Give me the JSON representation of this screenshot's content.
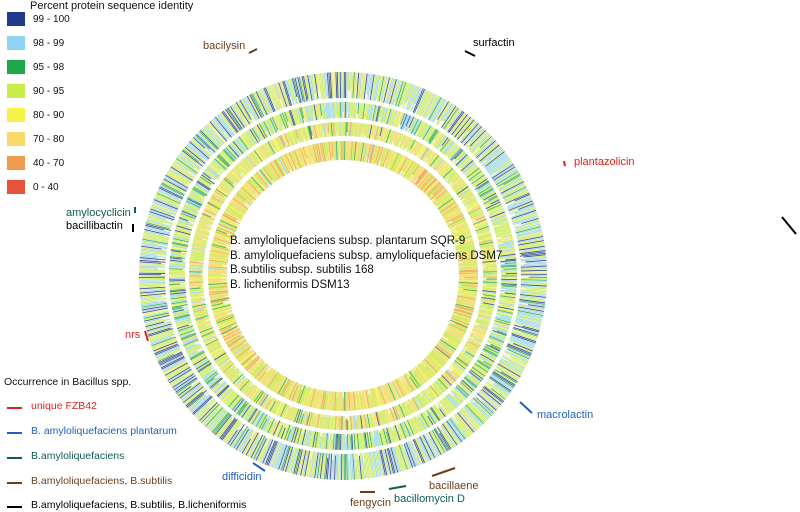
{
  "identity_legend": {
    "title": "Percent protein sequence identity",
    "items": [
      {
        "range": "99 - 100",
        "color": "#233a8c"
      },
      {
        "range": "98 - 99",
        "color": "#8ed3f2"
      },
      {
        "range": "95 - 98",
        "color": "#1fa84a"
      },
      {
        "range": "90 - 95",
        "color": "#c8ec4a"
      },
      {
        "range": "80 - 90",
        "color": "#f7f24a"
      },
      {
        "range": "70 - 80",
        "color": "#f8d866"
      },
      {
        "range": "40 - 70",
        "color": "#ef9a4e"
      },
      {
        "range": "0 - 40",
        "color": "#e5533b"
      }
    ]
  },
  "ring_genomes": [
    "B. amyloliquefaciens  subsp. plantarum SQR-9",
    "B. amyloliquefaciens subsp. amyloliquefaciens DSM7",
    "B.subtilis subsp. subtilis 168",
    "B. licheniformis DSM13"
  ],
  "occurrence_legend": {
    "title": "Occurrence in Bacillus spp.",
    "items": [
      {
        "label": "unique FZB42",
        "color": "#e0201b"
      },
      {
        "label": "B. amyloliquefaciens plantarum",
        "color": "#1f5fbf"
      },
      {
        "label": "B.amyloliquefaciens",
        "color": "#0f5e52"
      },
      {
        "label": "B.amyloliquefaciens, B.subtilis",
        "color": "#6b3e1c"
      },
      {
        "label": "B.amyloliquefaciens, B.subtilis, B.licheniformis",
        "color": "#000000"
      }
    ]
  },
  "gene_clusters": [
    {
      "name": "bacilysin",
      "color": "#6b3e1c"
    },
    {
      "name": "surfactin",
      "color": "#000000"
    },
    {
      "name": "plantazolicin",
      "color": "#e0201b"
    },
    {
      "name": "amylocyclicin",
      "color": "#0f5e52"
    },
    {
      "name": "bacillibactin",
      "color": "#000000"
    },
    {
      "name": "nrs",
      "color": "#e0201b"
    },
    {
      "name": "macrolactin",
      "color": "#1f5fbf"
    },
    {
      "name": "difficidin",
      "color": "#1f5fbf"
    },
    {
      "name": "bacillaene",
      "color": "#6b3e1c"
    },
    {
      "name": "fengycin",
      "color": "#6b3e1c"
    },
    {
      "name": "bacillomycin D",
      "color": "#0f5e52"
    }
  ]
}
